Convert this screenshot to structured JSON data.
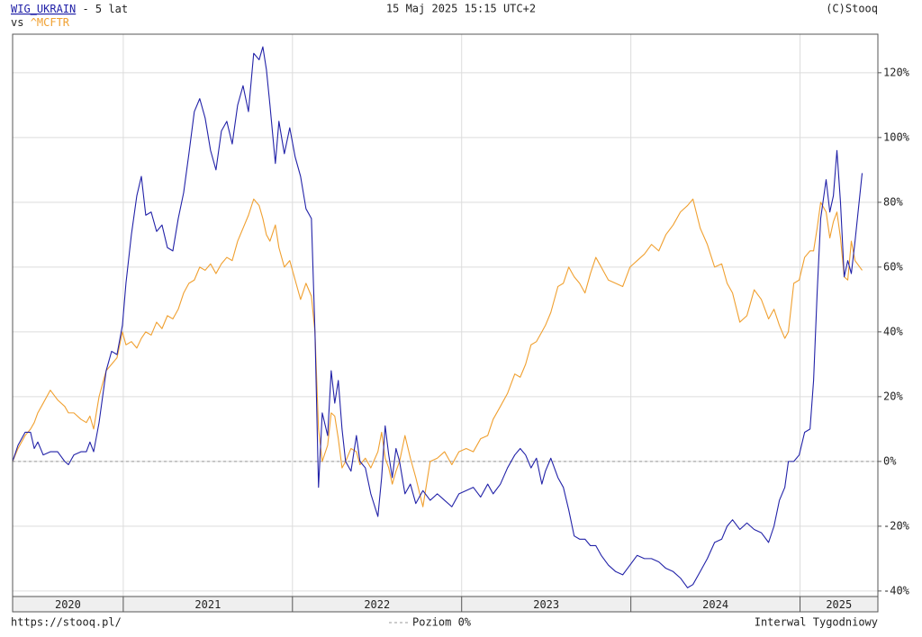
{
  "chart_data": {
    "type": "line",
    "title": "- 5 lat",
    "timestamp": "15 Maj 2025 15:15 UTC+2",
    "copyright": "(C)Stooq",
    "compare_label": "vs",
    "source": "https://stooq.pl/",
    "interval": "Interwal Tygodniowy",
    "reference_line": {
      "value": 0,
      "label": "Poziom 0%"
    },
    "grid": true,
    "xlim": [
      2020.346,
      2025.46
    ],
    "xticks": [
      2021,
      2022,
      2023,
      2024,
      2025
    ],
    "x_labels": [
      "2020",
      "2021",
      "2022",
      "2023",
      "2024",
      "2025"
    ],
    "ylim": [
      -41.7,
      131.9
    ],
    "yticks": [
      {
        "value": -40,
        "label": "-40%"
      },
      {
        "value": -20,
        "label": "-20%"
      },
      {
        "value": 0,
        "label": "0%"
      },
      {
        "value": 20,
        "label": "20%"
      },
      {
        "value": 40,
        "label": "40%"
      },
      {
        "value": 60,
        "label": "60%"
      },
      {
        "value": 80,
        "label": "80%"
      },
      {
        "value": 100,
        "label": "100%"
      },
      {
        "value": 120,
        "label": "120%"
      }
    ],
    "x": [
      2020.346,
      2020.378,
      2020.42,
      2020.452,
      2020.474,
      2020.495,
      2020.527,
      2020.569,
      2020.612,
      2020.654,
      2020.676,
      2020.708,
      2020.75,
      2020.782,
      2020.803,
      2020.825,
      2020.857,
      2020.899,
      2020.931,
      2020.963,
      2020.995,
      2021.016,
      2021.048,
      2021.08,
      2021.107,
      2021.133,
      2021.165,
      2021.197,
      2021.229,
      2021.261,
      2021.293,
      2021.325,
      2021.357,
      2021.388,
      2021.42,
      2021.452,
      2021.484,
      2021.516,
      2021.548,
      2021.58,
      2021.612,
      2021.644,
      2021.676,
      2021.708,
      2021.74,
      2021.771,
      2021.803,
      2021.825,
      2021.846,
      2021.867,
      2021.899,
      2021.92,
      2021.952,
      2021.984,
      2022.016,
      2022.048,
      2022.08,
      2022.112,
      2022.133,
      2022.154,
      2022.176,
      2022.208,
      2022.229,
      2022.25,
      2022.271,
      2022.293,
      2022.314,
      2022.346,
      2022.378,
      2022.399,
      2022.431,
      2022.463,
      2022.505,
      2022.527,
      2022.548,
      2022.569,
      2022.59,
      2022.612,
      2022.633,
      2022.665,
      2022.697,
      2022.729,
      2022.771,
      2022.814,
      2022.856,
      2022.899,
      2022.942,
      2022.984,
      2023.027,
      2023.069,
      2023.112,
      2023.154,
      2023.186,
      2023.229,
      2023.271,
      2023.314,
      2023.346,
      2023.378,
      2023.41,
      2023.442,
      2023.474,
      2023.495,
      2023.527,
      2023.569,
      2023.601,
      2023.633,
      2023.665,
      2023.697,
      2023.729,
      2023.761,
      2023.793,
      2023.825,
      2023.867,
      2023.91,
      2023.952,
      2023.995,
      2024.037,
      2024.08,
      2024.122,
      2024.165,
      2024.207,
      2024.25,
      2024.293,
      2024.335,
      2024.367,
      2024.41,
      2024.452,
      2024.495,
      2024.537,
      2024.569,
      2024.601,
      2024.644,
      2024.686,
      2024.729,
      2024.771,
      2024.814,
      2024.846,
      2024.878,
      2024.91,
      2024.931,
      2024.963,
      2024.995,
      2025.027,
      2025.059,
      2025.08,
      2025.101,
      2025.122,
      2025.154,
      2025.176,
      2025.197,
      2025.218,
      2025.239,
      2025.261,
      2025.282,
      2025.303,
      2025.325,
      2025.367
    ],
    "series": [
      {
        "name": "WIG_UKRAIN",
        "color": "#2222a8",
        "values": [
          0,
          5,
          9,
          9,
          4,
          6,
          2,
          3,
          3,
          0,
          -1,
          2,
          3,
          3,
          6,
          3,
          12,
          28,
          34,
          33,
          42,
          55,
          70,
          82,
          88,
          76,
          77,
          71,
          73,
          66,
          65,
          75,
          83,
          95,
          108,
          112,
          106,
          96,
          90,
          102,
          105,
          98,
          110,
          116,
          108,
          126,
          124,
          128,
          121,
          110,
          92,
          105,
          95,
          103,
          94,
          88,
          78,
          75,
          40,
          -8,
          15,
          8,
          28,
          18,
          25,
          10,
          0,
          -3,
          8,
          0,
          -2,
          -10,
          -17,
          -5,
          11,
          2,
          -5,
          4,
          0,
          -10,
          -7,
          -13,
          -9,
          -12,
          -10,
          -12,
          -14,
          -10,
          -9,
          -8,
          -11,
          -7,
          -10,
          -7,
          -2,
          2,
          4,
          2,
          -2,
          1,
          -7,
          -3,
          1,
          -5,
          -8,
          -15,
          -23,
          -24,
          -24,
          -26,
          -26,
          -29,
          -32,
          -34,
          -35,
          -32,
          -29,
          -30,
          -30,
          -31,
          -33,
          -34,
          -36,
          -39,
          -38,
          -34,
          -30,
          -25,
          -24,
          -20,
          -18,
          -21,
          -19,
          -21,
          -22,
          -25,
          -20,
          -12,
          -8,
          0,
          0,
          2,
          9,
          10,
          25,
          52,
          75,
          87,
          77,
          82,
          96,
          80,
          57,
          62,
          58,
          68,
          89
        ]
      },
      {
        "name": "^MCFTR",
        "color": "#f0a030",
        "values": [
          0,
          4,
          8,
          10,
          12,
          15,
          18,
          22,
          19,
          17,
          15,
          15,
          13,
          12,
          14,
          10,
          20,
          28,
          30,
          32,
          40,
          36,
          37,
          35,
          38,
          40,
          39,
          43,
          41,
          45,
          44,
          47,
          52,
          55,
          56,
          60,
          59,
          61,
          58,
          61,
          63,
          62,
          68,
          72,
          76,
          81,
          79,
          75,
          70,
          68,
          73,
          66,
          60,
          62,
          56,
          50,
          55,
          51,
          40,
          10,
          0,
          5,
          15,
          14,
          7,
          -2,
          0,
          4,
          3,
          -1,
          1,
          -2,
          3,
          9,
          1,
          -2,
          -7,
          -3,
          0,
          8,
          1,
          -5,
          -14,
          0,
          1,
          3,
          -1,
          3,
          4,
          3,
          7,
          8,
          13,
          17,
          21,
          27,
          26,
          30,
          36,
          37,
          40,
          42,
          46,
          54,
          55,
          60,
          57,
          55,
          52,
          58,
          63,
          60,
          56,
          55,
          54,
          60,
          62,
          64,
          67,
          65,
          70,
          73,
          77,
          79,
          81,
          72,
          67,
          60,
          61,
          55,
          52,
          43,
          45,
          53,
          50,
          44,
          47,
          42,
          38,
          40,
          55,
          56,
          63,
          65,
          65,
          72,
          80,
          77,
          69,
          74,
          77,
          69,
          57,
          56,
          68,
          62,
          59
        ]
      }
    ]
  }
}
